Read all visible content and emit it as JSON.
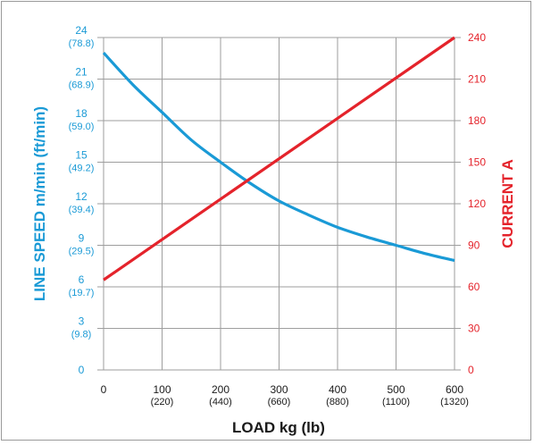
{
  "chart_data": {
    "type": "line",
    "xlabel": "LOAD kg (lb)",
    "ylabel_left": "LINE SPEED m/min (ft/min)",
    "ylabel_right": "CURRENT A",
    "x_ticks": [
      {
        "value": 0,
        "label": "0",
        "sub": ""
      },
      {
        "value": 100,
        "label": "100",
        "sub": "(220)"
      },
      {
        "value": 200,
        "label": "200",
        "sub": "(440)"
      },
      {
        "value": 300,
        "label": "300",
        "sub": "(660)"
      },
      {
        "value": 400,
        "label": "400",
        "sub": "(880)"
      },
      {
        "value": 500,
        "label": "500",
        "sub": "(1100)"
      },
      {
        "value": 600,
        "label": "600",
        "sub": "(1320)"
      }
    ],
    "y_left_ticks": [
      {
        "value": 0,
        "label": "0",
        "sub": ""
      },
      {
        "value": 3,
        "label": "3",
        "sub": "(9.8)"
      },
      {
        "value": 6,
        "label": "6",
        "sub": "(19.7)"
      },
      {
        "value": 9,
        "label": "9",
        "sub": "(29.5)"
      },
      {
        "value": 12,
        "label": "12",
        "sub": "(39.4)"
      },
      {
        "value": 15,
        "label": "15",
        "sub": "(49.2)"
      },
      {
        "value": 18,
        "label": "18",
        "sub": "(59.0)"
      },
      {
        "value": 21,
        "label": "21",
        "sub": "(68.9)"
      },
      {
        "value": 24,
        "label": "24",
        "sub": "(78.8)"
      }
    ],
    "y_right_ticks": [
      {
        "value": 0,
        "label": "0"
      },
      {
        "value": 30,
        "label": "30"
      },
      {
        "value": 60,
        "label": "60"
      },
      {
        "value": 90,
        "label": "90"
      },
      {
        "value": 120,
        "label": "120"
      },
      {
        "value": 150,
        "label": "150"
      },
      {
        "value": 180,
        "label": "180"
      },
      {
        "value": 210,
        "label": "210"
      },
      {
        "value": 240,
        "label": "240"
      }
    ],
    "xlim": [
      0,
      600
    ],
    "ylim_left": [
      0,
      24
    ],
    "ylim_right": [
      0,
      240
    ],
    "grid": true,
    "series": [
      {
        "axis": "left",
        "color": "#1a9ad6",
        "x": [
          0,
          50,
          100,
          150,
          200,
          250,
          300,
          350,
          400,
          450,
          500,
          550,
          600
        ],
        "y": [
          22.9,
          20.6,
          18.6,
          16.6,
          15.0,
          13.5,
          12.2,
          11.2,
          10.3,
          9.6,
          9.0,
          8.4,
          7.9
        ]
      },
      {
        "axis": "right",
        "color": "#e4232b",
        "x": [
          0,
          600
        ],
        "y": [
          65,
          240
        ]
      }
    ],
    "colors": {
      "left_axis": "#1a9ad6",
      "right_axis": "#e4232b",
      "grid": "#9e9e9e",
      "text": "#1a1a1a"
    }
  }
}
